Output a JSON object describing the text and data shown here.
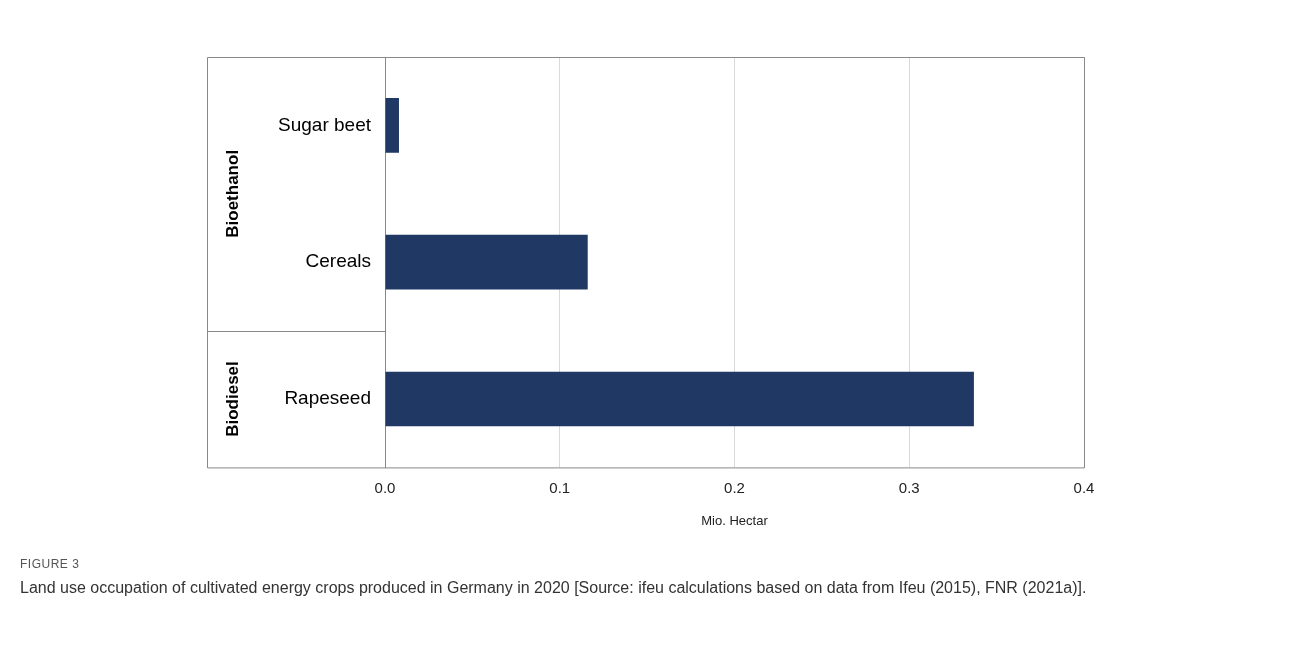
{
  "chart_data": {
    "type": "bar",
    "orientation": "horizontal",
    "title": "FIGURE 3",
    "subtitle": "Land use occupation of cultivated energy crops produced in Germany in 2020 [Source: ifeu calculations based on data from Ifeu (2015), FNR (2021a)].",
    "categories": [
      "Sugar beet",
      "Cereals",
      "Rapeseed"
    ],
    "values": [
      0.008,
      0.116,
      0.337
    ],
    "color": "#1f3864",
    "xlabel": "Mio. Hectar",
    "xlim": [
      0,
      0.4
    ],
    "xticks": [
      {
        "value": 0,
        "label": "0.0"
      },
      0.1,
      0.2,
      0.3,
      0.4
    ],
    "annotations": [
      "Bioethanol",
      "Biodiesel"
    ],
    "grid": "x",
    "legend": false
  }
}
